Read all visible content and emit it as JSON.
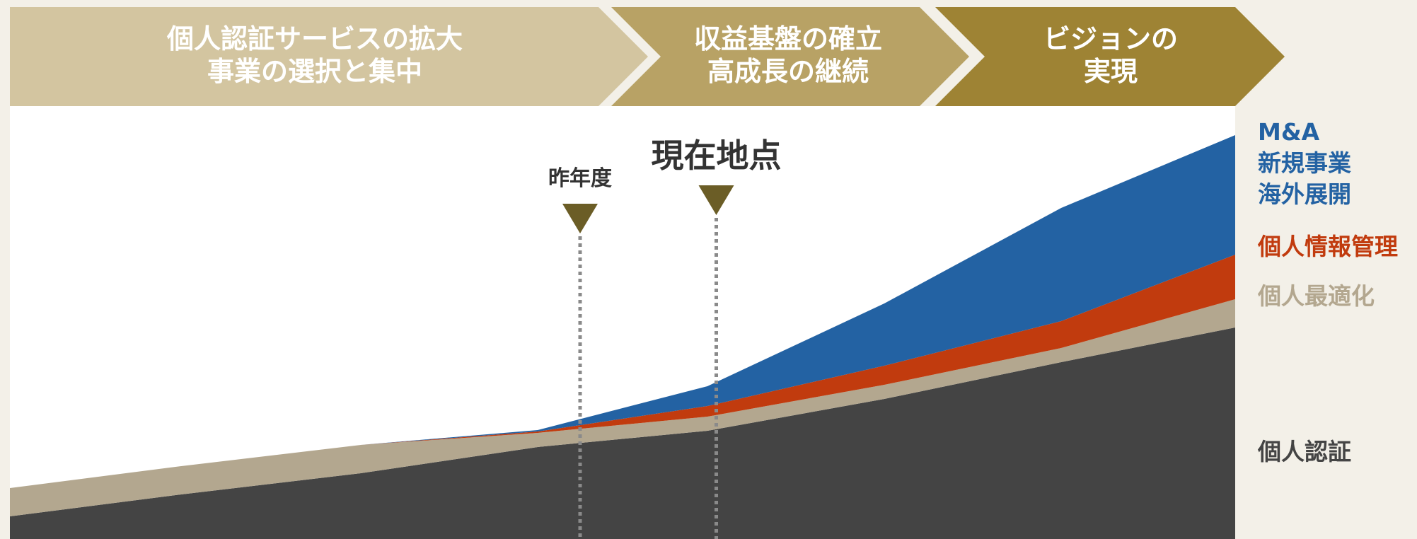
{
  "phases": [
    {
      "lines": [
        "個人認証サービスの拡大",
        "事業の選択と集中"
      ],
      "color": "#d3c5a0"
    },
    {
      "lines": [
        "収益基盤の確立",
        "高成長の継続"
      ],
      "color": "#b8a265"
    },
    {
      "lines": [
        "ビジョンの",
        "実現"
      ],
      "color": "#9e8334"
    }
  ],
  "markers": {
    "last_year": {
      "label": "昨年度",
      "color": "#333333"
    },
    "current": {
      "label": "現在地点",
      "color": "#e60012"
    },
    "arrow_color": "#6b5d26",
    "line_color": "#8a8a8a"
  },
  "legend": [
    {
      "key": "ma",
      "lines": [
        "M&A",
        "新規事業",
        "海外展開"
      ],
      "color": "#2362a3"
    },
    {
      "key": "pim",
      "lines": [
        "個人情報管理"
      ],
      "color": "#c13b0e"
    },
    {
      "key": "opt",
      "lines": [
        "個人最適化"
      ],
      "color": "#b3a78f"
    },
    {
      "key": "auth",
      "lines": [
        "個人認証"
      ],
      "color": "#444444"
    }
  ],
  "chart_data": {
    "type": "area",
    "stacked": true,
    "series_keys": [
      "auth",
      "opt",
      "pim",
      "ma"
    ],
    "x": [
      0,
      1,
      2,
      3,
      4,
      5,
      6,
      7
    ],
    "series": [
      {
        "values": [
          32,
          62,
          93,
          130,
          153,
          198,
          250,
          299
        ]
      },
      {
        "values": [
          40,
          40,
          40,
          20,
          20,
          20,
          20,
          40
        ]
      },
      {
        "values": [
          0,
          0,
          0,
          2,
          15,
          27,
          38,
          63
        ]
      },
      {
        "values": [
          0,
          0,
          0,
          2,
          28,
          88,
          160,
          169
        ]
      }
    ],
    "ylim": [
      0,
      580
    ],
    "markers_x": {
      "last_year": 3.25,
      "current": 4.05
    },
    "grid": false
  }
}
